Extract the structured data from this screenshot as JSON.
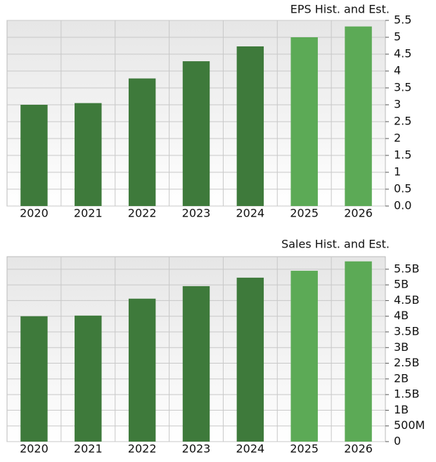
{
  "chart_data": [
    {
      "type": "bar",
      "title": "EPS Hist. and Est.",
      "categories": [
        "2020",
        "2021",
        "2022",
        "2023",
        "2024",
        "2025",
        "2026"
      ],
      "values": [
        3.0,
        3.05,
        3.78,
        4.29,
        4.73,
        5.0,
        5.32
      ],
      "colors": [
        "#3e7a3b",
        "#3e7a3b",
        "#3e7a3b",
        "#3e7a3b",
        "#3e7a3b",
        "#5caa56",
        "#5caa56"
      ],
      "ylim": [
        0,
        5.5
      ],
      "yticks": [
        {
          "value": 0,
          "label": "0.0"
        },
        0.5,
        1,
        1.5,
        2,
        2.5,
        3,
        3.5,
        4,
        4.5,
        5,
        5.5
      ],
      "grid": true
    },
    {
      "type": "bar",
      "title": "Sales Hist. and Est.",
      "categories": [
        "2020",
        "2021",
        "2022",
        "2023",
        "2024",
        "2025",
        "2026"
      ],
      "values": [
        4000000000,
        4020000000,
        4560000000,
        4960000000,
        5230000000,
        5450000000,
        5750000000
      ],
      "colors": [
        "#3e7a3b",
        "#3e7a3b",
        "#3e7a3b",
        "#3e7a3b",
        "#3e7a3b",
        "#5caa56",
        "#5caa56"
      ],
      "ylim": [
        0,
        5900000000
      ],
      "yticks": [
        0,
        {
          "value": 500000000,
          "label": "500M"
        },
        {
          "value": 1000000000,
          "label": "1B"
        },
        {
          "value": 1500000000,
          "label": "1.5B"
        },
        {
          "value": 2000000000,
          "label": "2B"
        },
        {
          "value": 2500000000,
          "label": "2.5B"
        },
        {
          "value": 3000000000,
          "label": "3B"
        },
        {
          "value": 3500000000,
          "label": "3.5B"
        },
        {
          "value": 4000000000,
          "label": "4B"
        },
        {
          "value": 4500000000,
          "label": "4.5B"
        },
        {
          "value": 5000000000,
          "label": "5B"
        },
        {
          "value": 5500000000,
          "label": "5.5B"
        }
      ],
      "grid": true
    }
  ]
}
